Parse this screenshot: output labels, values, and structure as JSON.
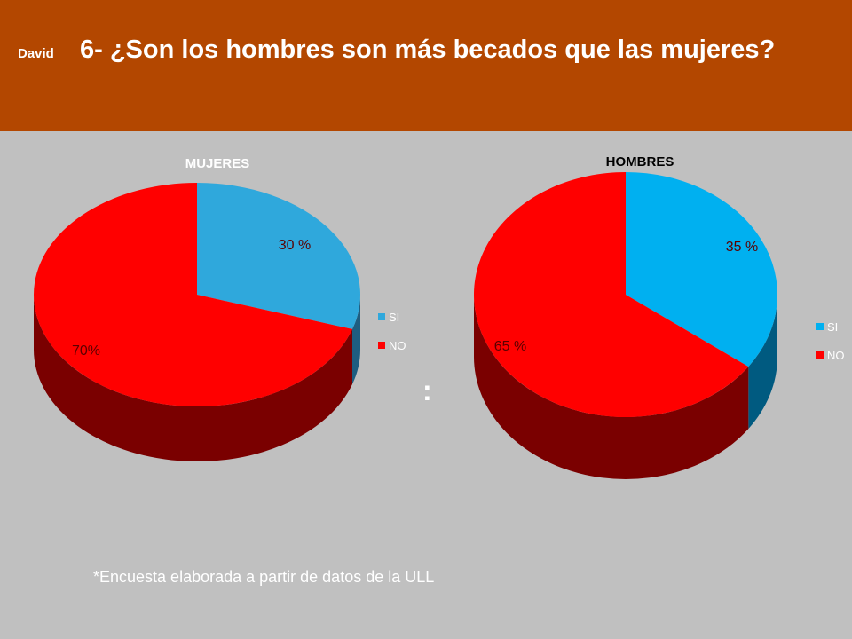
{
  "header": {
    "author": "David",
    "title": "6- ¿Son los hombres son más becados que las mujeres?"
  },
  "colors": {
    "header_bg": "#b34700",
    "background": "#c0c0c0",
    "no": "#ff0000",
    "no_side": "#7a0000",
    "si_mujeres": "#2fa8dc",
    "si_mujeres_side": "#1e5d80",
    "si_hombres": "#00b0f0",
    "si_hombres_side": "#005a80"
  },
  "separator": ":",
  "chart_data": [
    {
      "type": "pie",
      "title": "MUJERES",
      "categories": [
        "SI",
        "NO"
      ],
      "values": [
        30,
        70
      ],
      "labels": [
        "30 %",
        "70%"
      ],
      "legend": [
        "SI",
        "NO"
      ],
      "legend_position": "right"
    },
    {
      "type": "pie",
      "title": "HOMBRES",
      "categories": [
        "SI",
        "NO"
      ],
      "values": [
        35,
        65
      ],
      "labels": [
        "35 %",
        "65 %"
      ],
      "legend": [
        "SI",
        "NO"
      ],
      "legend_position": "right"
    }
  ],
  "footnote": "*Encuesta elaborada  a partir de datos de la ULL"
}
